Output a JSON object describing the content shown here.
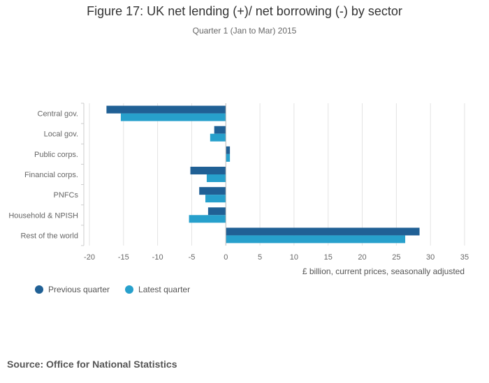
{
  "chart_data": {
    "type": "bar",
    "orientation": "horizontal",
    "title": "Figure 17: UK net lending (+)/ net borrowing (-) by sector",
    "subtitle": "Quarter 1 (Jan to Mar) 2015",
    "xlabel": "£ billion, current prices, seasonally adjusted",
    "ylabel": "",
    "categories": [
      "Central gov.",
      "Local gov.",
      "Public corps.",
      "Financial corps.",
      "PNFCs",
      "Household & NPISH",
      "Rest of the world"
    ],
    "series": [
      {
        "name": "Previous quarter",
        "color": "#206095",
        "values": [
          -17.5,
          -1.7,
          0.6,
          -5.2,
          -3.9,
          -2.6,
          28.4
        ]
      },
      {
        "name": "Latest quarter",
        "color": "#27a0cc",
        "values": [
          -15.4,
          -2.3,
          0.6,
          -2.8,
          -3.0,
          -5.4,
          26.3
        ]
      }
    ],
    "xlim": [
      -20,
      35
    ],
    "xticks": [
      -20,
      -15,
      -10,
      -5,
      0,
      5,
      10,
      15,
      20,
      25,
      30,
      35
    ],
    "grid": true,
    "legend_position": "bottom-left"
  },
  "source": "Source: Office for National Statistics"
}
